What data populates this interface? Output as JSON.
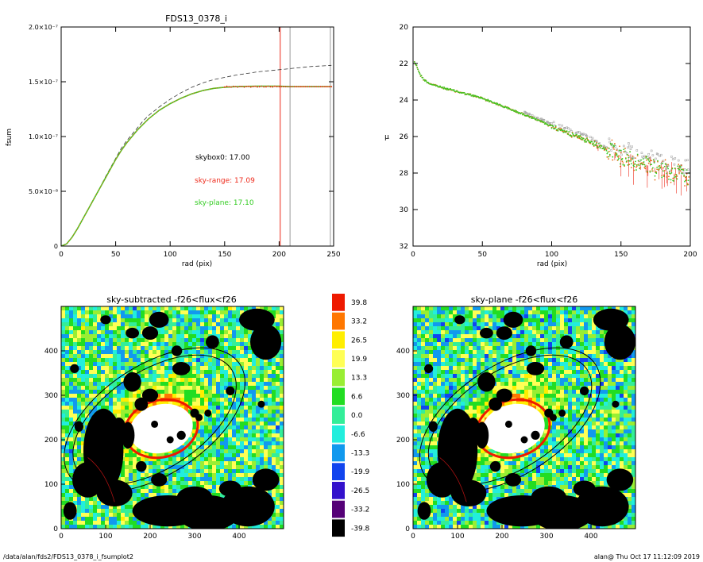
{
  "footer": {
    "path": "/data/alan/fds2/FDS13_0378_i_fsumplot2",
    "user_stamp": "alan@  Thu Oct 17 11:12:09 2019"
  },
  "colors": {
    "data_orange": "#e8711c",
    "data_green": "#33cc22",
    "data_red": "#ee2a1b",
    "marker_gray": "#9a9a9a",
    "dashed": "#333333"
  },
  "chart_data": [
    {
      "type": "line",
      "title": "FDS13_0378_i",
      "xlabel": "rad (pix)",
      "ylabel": "fsum",
      "xlim": [
        0,
        250
      ],
      "ylim": [
        0,
        2e-07
      ],
      "xticks": [
        "0",
        "50",
        "100",
        "150",
        "200",
        "250"
      ],
      "yticks": [
        "0",
        "5.0×10⁻⁸",
        "1.0×10⁻⁷",
        "1.5×10⁻⁷",
        "2.0×10⁻⁷"
      ],
      "ytick_values": [
        0,
        5e-08,
        1e-07,
        1.5e-07,
        2e-07
      ],
      "annotations": [
        {
          "text": "skybox0: 17.00",
          "color": "#000000"
        },
        {
          "text": "sky-range: 17.09",
          "color": "#ee2a1b"
        },
        {
          "text": "sky-plane: 17.10",
          "color": "#33cc22"
        }
      ],
      "vlines": [
        {
          "x": 201,
          "color": "#ee2a1b"
        },
        {
          "x": 210,
          "color": "#9a9a9a"
        },
        {
          "x": 247,
          "color": "#9a9a9a"
        }
      ],
      "series": [
        {
          "x": [
            0,
            5,
            10,
            15,
            20,
            25,
            30,
            35,
            40,
            45,
            50,
            55,
            60,
            65,
            70,
            75,
            80,
            90,
            100,
            110,
            120,
            130,
            140,
            150,
            160,
            170,
            180,
            190,
            200,
            210,
            220,
            230,
            240,
            248
          ],
          "values": [
            0,
            2e-09,
            8e-09,
            1.6e-08,
            2.5e-08,
            3.4e-08,
            4.3e-08,
            5.2e-08,
            6.1e-08,
            7e-08,
            7.9e-08,
            8.7e-08,
            9.4e-08,
            1e-07,
            1.06e-07,
            1.11e-07,
            1.16e-07,
            1.24e-07,
            1.3e-07,
            1.35e-07,
            1.39e-07,
            1.42e-07,
            1.44e-07,
            1.45e-07,
            1.455e-07,
            1.458e-07,
            1.46e-07,
            1.46e-07,
            1.46e-07,
            1.455e-07,
            1.455e-07,
            1.455e-07,
            1.455e-07,
            1.455e-07
          ]
        },
        {
          "x": [
            0,
            5,
            10,
            15,
            20,
            25,
            30,
            35,
            40,
            45,
            50,
            55,
            60,
            65,
            70,
            75,
            80,
            90,
            100,
            110,
            120,
            130,
            140,
            150,
            160,
            170,
            180,
            190,
            200,
            210,
            220,
            230,
            240,
            248
          ],
          "values": [
            0,
            2e-09,
            8e-09,
            1.6e-08,
            2.5e-08,
            3.4e-08,
            4.3e-08,
            5.2e-08,
            6.2e-08,
            7.1e-08,
            8e-08,
            8.9e-08,
            9.6e-08,
            1.02e-07,
            1.08e-07,
            1.14e-07,
            1.19e-07,
            1.27e-07,
            1.34e-07,
            1.4e-07,
            1.45e-07,
            1.49e-07,
            1.52e-07,
            1.54e-07,
            1.56e-07,
            1.575e-07,
            1.59e-07,
            1.6e-07,
            1.61e-07,
            1.62e-07,
            1.63e-07,
            1.64e-07,
            1.645e-07,
            1.65e-07
          ],
          "style": "dashed"
        }
      ]
    },
    {
      "type": "scatter",
      "xlabel": "rad (pix)",
      "ylabel": "μ",
      "xlim": [
        0,
        200
      ],
      "ylim": [
        32,
        20
      ],
      "xticks": [
        "0",
        "50",
        "100",
        "150",
        "200"
      ],
      "yticks": [
        "20",
        "22",
        "24",
        "26",
        "28",
        "30",
        "32"
      ],
      "trend": {
        "x": [
          1,
          3,
          5,
          8,
          12,
          20,
          30,
          40,
          50,
          60,
          70,
          80,
          90,
          100,
          110,
          120,
          130,
          140,
          150,
          160,
          170,
          180,
          190,
          200
        ],
        "values": [
          21.9,
          22.2,
          22.6,
          22.9,
          23.1,
          23.3,
          23.5,
          23.7,
          23.9,
          24.2,
          24.5,
          24.8,
          25.1,
          25.45,
          25.75,
          26.05,
          26.35,
          26.75,
          27.1,
          27.35,
          27.6,
          27.85,
          28.05,
          28.2
        ]
      }
    },
    {
      "type": "heatmap",
      "title": "sky-subtracted -f26<flux<f26",
      "xticks": [
        "0",
        "100",
        "200",
        "300",
        "400"
      ],
      "yticks": [
        "0",
        "100",
        "200",
        "300",
        "400"
      ],
      "xlim": [
        0,
        500
      ],
      "ylim": [
        0,
        500
      ],
      "ellipses": [
        {
          "cx": 210,
          "cy": 245,
          "a": 260,
          "b": 140,
          "angle_deg": 33
        },
        {
          "cx": 210,
          "cy": 245,
          "a": 235,
          "b": 125,
          "angle_deg": 33
        }
      ]
    },
    {
      "type": "heatmap",
      "title": "sky-plane -f26<flux<f26",
      "xticks": [
        "0",
        "100",
        "200",
        "300",
        "400"
      ],
      "yticks": [
        "0",
        "100",
        "200",
        "300",
        "400"
      ],
      "xlim": [
        0,
        500
      ],
      "ylim": [
        0,
        500
      ],
      "ellipses": [
        {
          "cx": 210,
          "cy": 245,
          "a": 260,
          "b": 140,
          "angle_deg": 33
        },
        {
          "cx": 210,
          "cy": 245,
          "a": 235,
          "b": 125,
          "angle_deg": 33
        }
      ]
    }
  ],
  "colorbar": {
    "labels": [
      "39.8",
      "33.2",
      "26.5",
      "19.9",
      "13.3",
      "6.6",
      "0.0",
      "-6.6",
      "-13.3",
      "-19.9",
      "-26.5",
      "-33.2",
      "-39.8"
    ],
    "colors": [
      "#ee1a00",
      "#ff7700",
      "#ffee00",
      "#ffff55",
      "#99ee33",
      "#22dd22",
      "#33ee99",
      "#22eedd",
      "#1199ee",
      "#1144ee",
      "#3311cc",
      "#550077",
      "#000000"
    ]
  }
}
